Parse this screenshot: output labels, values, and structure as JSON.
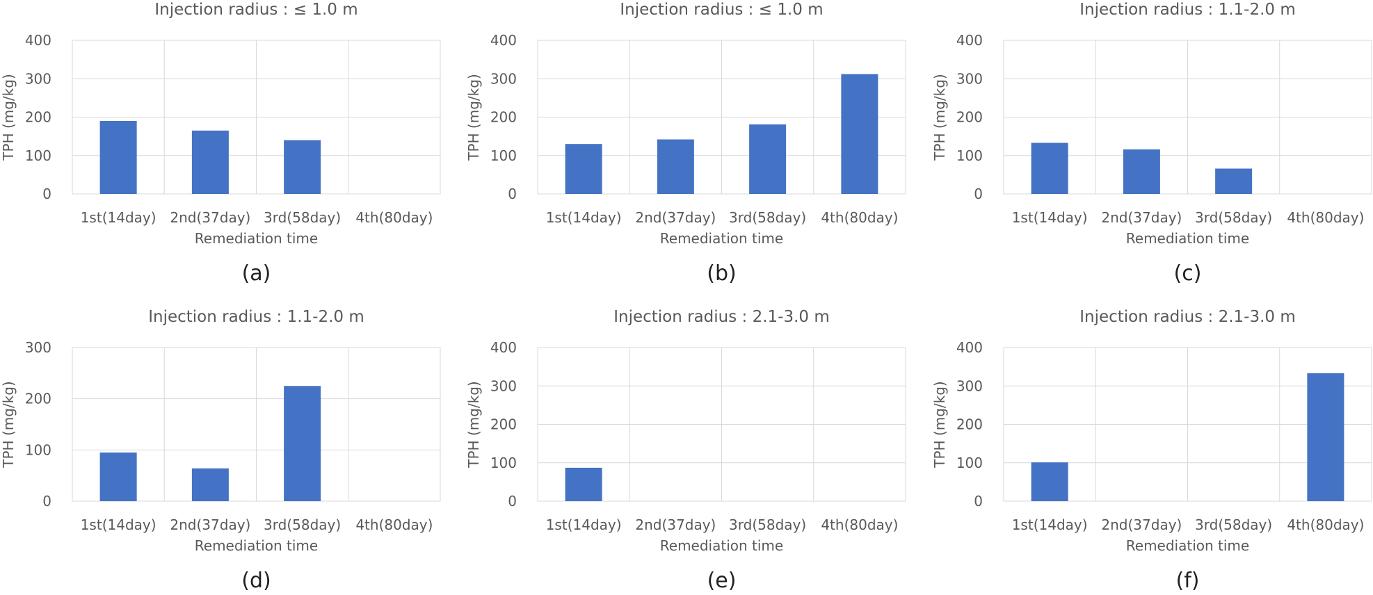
{
  "bar_color": "#4472c4",
  "gridline_color": "#d9d9d9",
  "text_color": "#595959",
  "chart_data": [
    {
      "type": "bar",
      "panel_label": "(a)",
      "title": "Injection radius : ≤ 1.0 m",
      "xlabel": "Remediation time",
      "ylabel": "TPH (mg/kg)",
      "categories": [
        "1st(14day)",
        "2nd(37day)",
        "3rd(58day)",
        "4th(80day)"
      ],
      "values": [
        190,
        165,
        140,
        0
      ],
      "ylim": [
        0,
        400
      ],
      "yticks": [
        0,
        100,
        200,
        300,
        400
      ],
      "grid": true,
      "legend": "none"
    },
    {
      "type": "bar",
      "panel_label": "(b)",
      "title": "Injection radius : ≤ 1.0 m",
      "xlabel": "Remediation time",
      "ylabel": "TPH (mg/kg)",
      "categories": [
        "1st(14day)",
        "2nd(37day)",
        "3rd(58day)",
        "4th(80day)"
      ],
      "values": [
        130,
        142,
        181,
        312
      ],
      "ylim": [
        0,
        400
      ],
      "yticks": [
        0,
        100,
        200,
        300,
        400
      ],
      "grid": true,
      "legend": "none"
    },
    {
      "type": "bar",
      "panel_label": "(c)",
      "title": "Injection radius : 1.1-2.0 m",
      "xlabel": "Remediation time",
      "ylabel": "TPH (mg/kg)",
      "categories": [
        "1st(14day)",
        "2nd(37day)",
        "3rd(58day)",
        "4th(80day)"
      ],
      "values": [
        133,
        116,
        66,
        0
      ],
      "ylim": [
        0,
        400
      ],
      "yticks": [
        0,
        100,
        200,
        300,
        400
      ],
      "grid": true,
      "legend": "none"
    },
    {
      "type": "bar",
      "panel_label": "(d)",
      "title": "Injection radius : 1.1-2.0 m",
      "xlabel": "Remediation time",
      "ylabel": "TPH (mg/kg)",
      "categories": [
        "1st(14day)",
        "2nd(37day)",
        "3rd(58day)",
        "4th(80day)"
      ],
      "values": [
        95,
        64,
        225,
        0
      ],
      "ylim": [
        0,
        300
      ],
      "yticks": [
        0,
        100,
        200,
        300
      ],
      "grid": true,
      "legend": "none"
    },
    {
      "type": "bar",
      "panel_label": "(e)",
      "title": "Injection radius : 2.1-3.0 m",
      "xlabel": "Remediation time",
      "ylabel": "TPH (mg/kg)",
      "categories": [
        "1st(14day)",
        "2nd(37day)",
        "3rd(58day)",
        "4th(80day)"
      ],
      "values": [
        87,
        0,
        0,
        0
      ],
      "ylim": [
        0,
        400
      ],
      "yticks": [
        0,
        100,
        200,
        300,
        400
      ],
      "grid": true,
      "legend": "none"
    },
    {
      "type": "bar",
      "panel_label": "(f)",
      "title": "Injection radius : 2.1-3.0 m",
      "xlabel": "Remediation time",
      "ylabel": "TPH (mg/kg)",
      "categories": [
        "1st(14day)",
        "2nd(37day)",
        "3rd(58day)",
        "4th(80day)"
      ],
      "values": [
        101,
        0,
        0,
        333
      ],
      "ylim": [
        0,
        400
      ],
      "yticks": [
        0,
        100,
        200,
        300,
        400
      ],
      "grid": true,
      "legend": "none"
    }
  ]
}
